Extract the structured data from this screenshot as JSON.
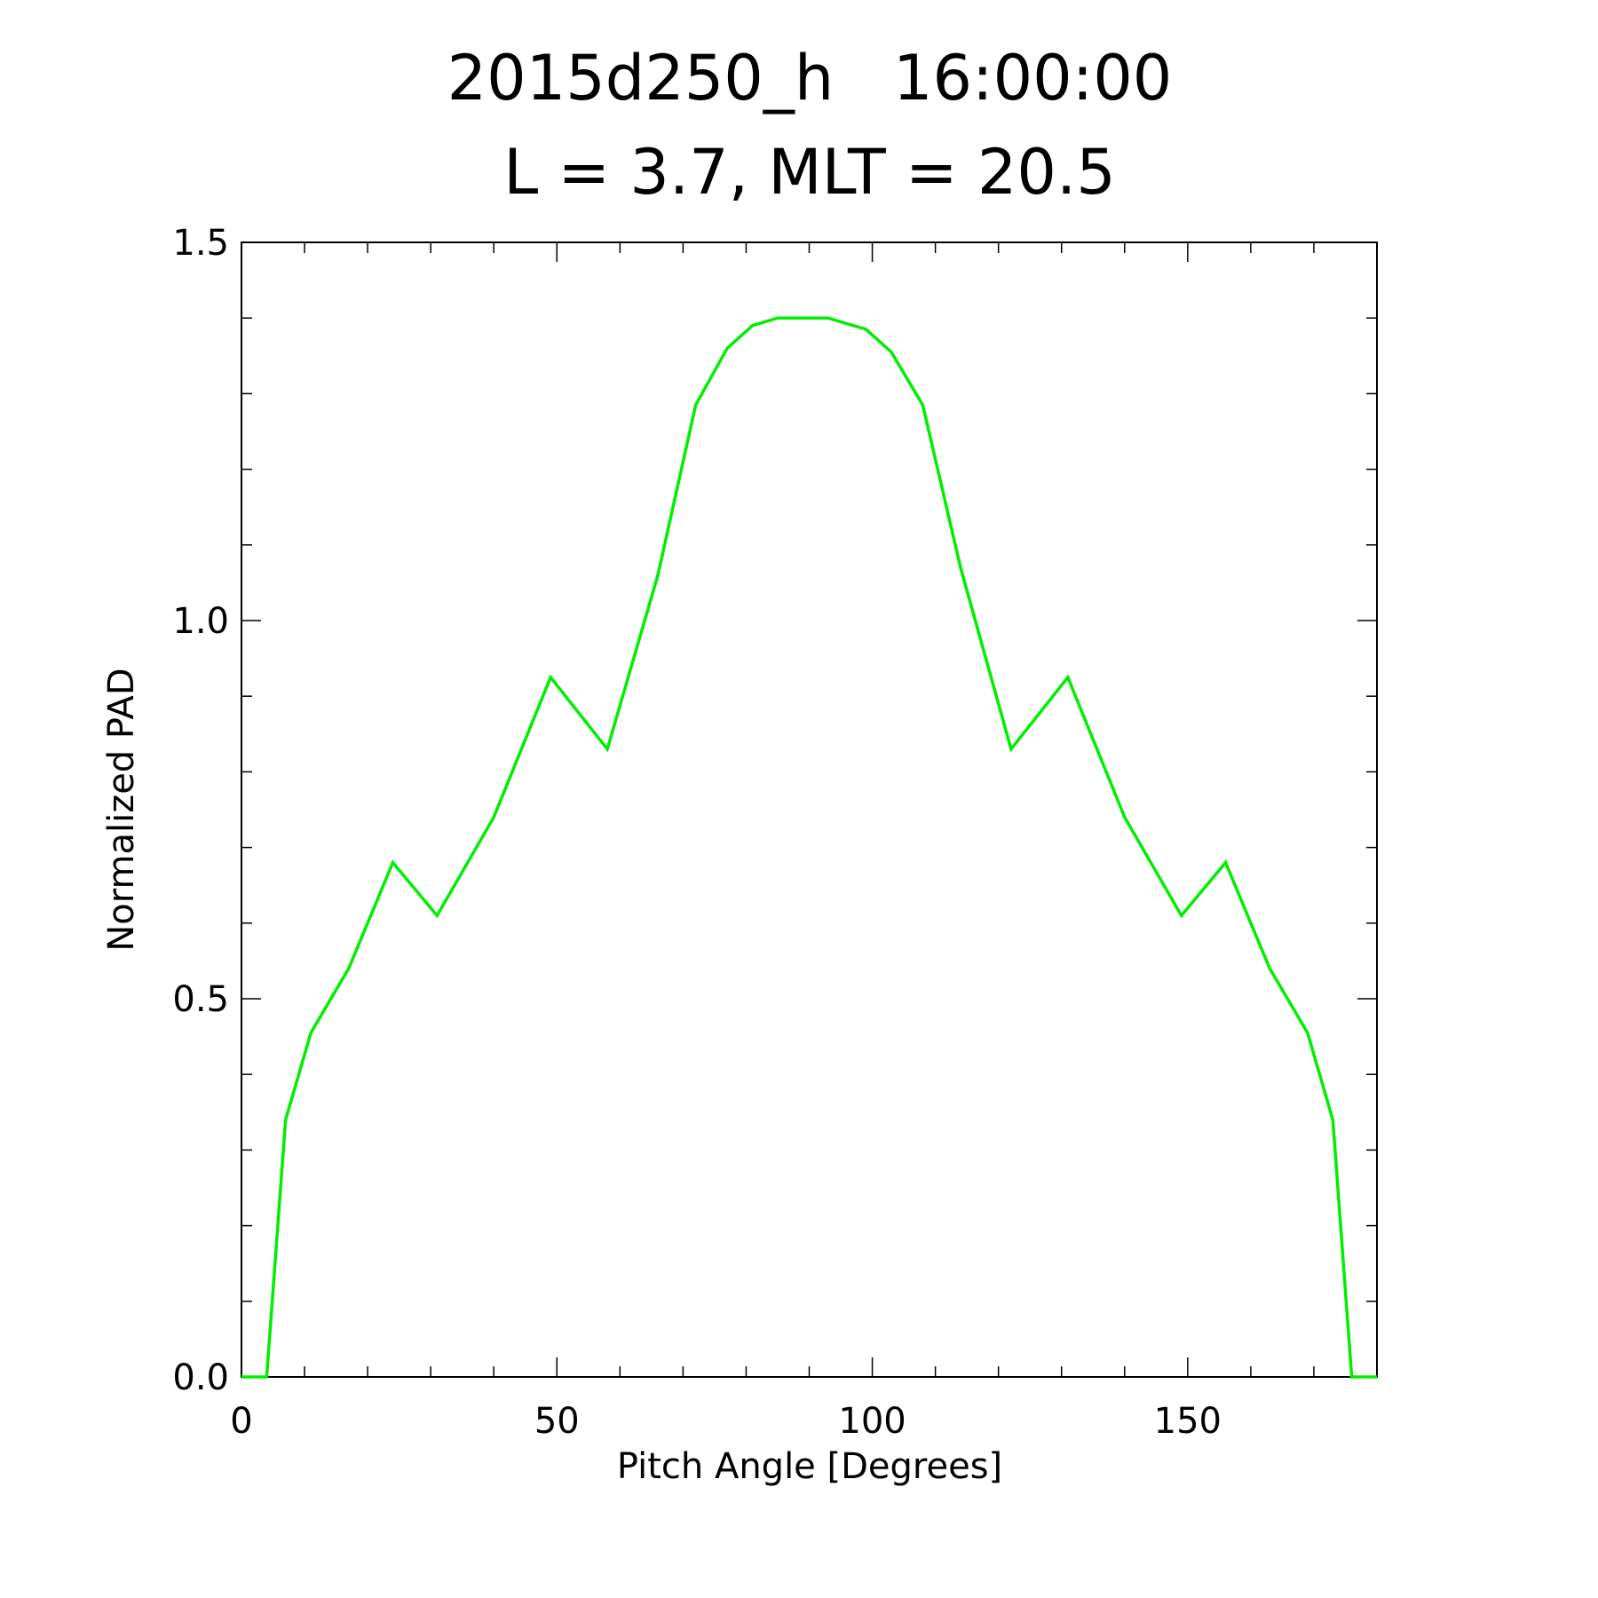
{
  "chart_data": {
    "type": "line",
    "title": "2015d250_h   16:00:00",
    "subtitle": "L = 3.7, MLT = 20.5",
    "xlabel": "Pitch Angle [Degrees]",
    "ylabel": "Normalized PAD",
    "xlim": [
      0,
      180
    ],
    "ylim": [
      0,
      1.5
    ],
    "x_ticks": [
      0,
      50,
      100,
      150
    ],
    "y_ticks": [
      "0.0",
      "0.5",
      "1.0",
      "1.5"
    ],
    "grid": false,
    "series": [
      {
        "color": "#00ee00",
        "x": [
          0,
          4,
          7,
          11,
          17,
          24,
          31,
          40,
          49,
          58,
          66,
          72,
          77,
          81,
          85,
          88,
          93,
          95,
          99,
          103,
          108,
          114,
          122,
          131,
          140,
          149,
          156,
          163,
          169,
          173,
          176,
          180
        ],
        "y": [
          0,
          0,
          0.34,
          0.455,
          0.54,
          0.68,
          0.61,
          0.74,
          0.925,
          0.83,
          1.06,
          1.285,
          1.36,
          1.39,
          1.4,
          1.4,
          1.4,
          1.395,
          1.385,
          1.355,
          1.285,
          1.07,
          0.83,
          0.925,
          0.74,
          0.61,
          0.68,
          0.54,
          0.455,
          0.34,
          0,
          0
        ]
      }
    ]
  }
}
